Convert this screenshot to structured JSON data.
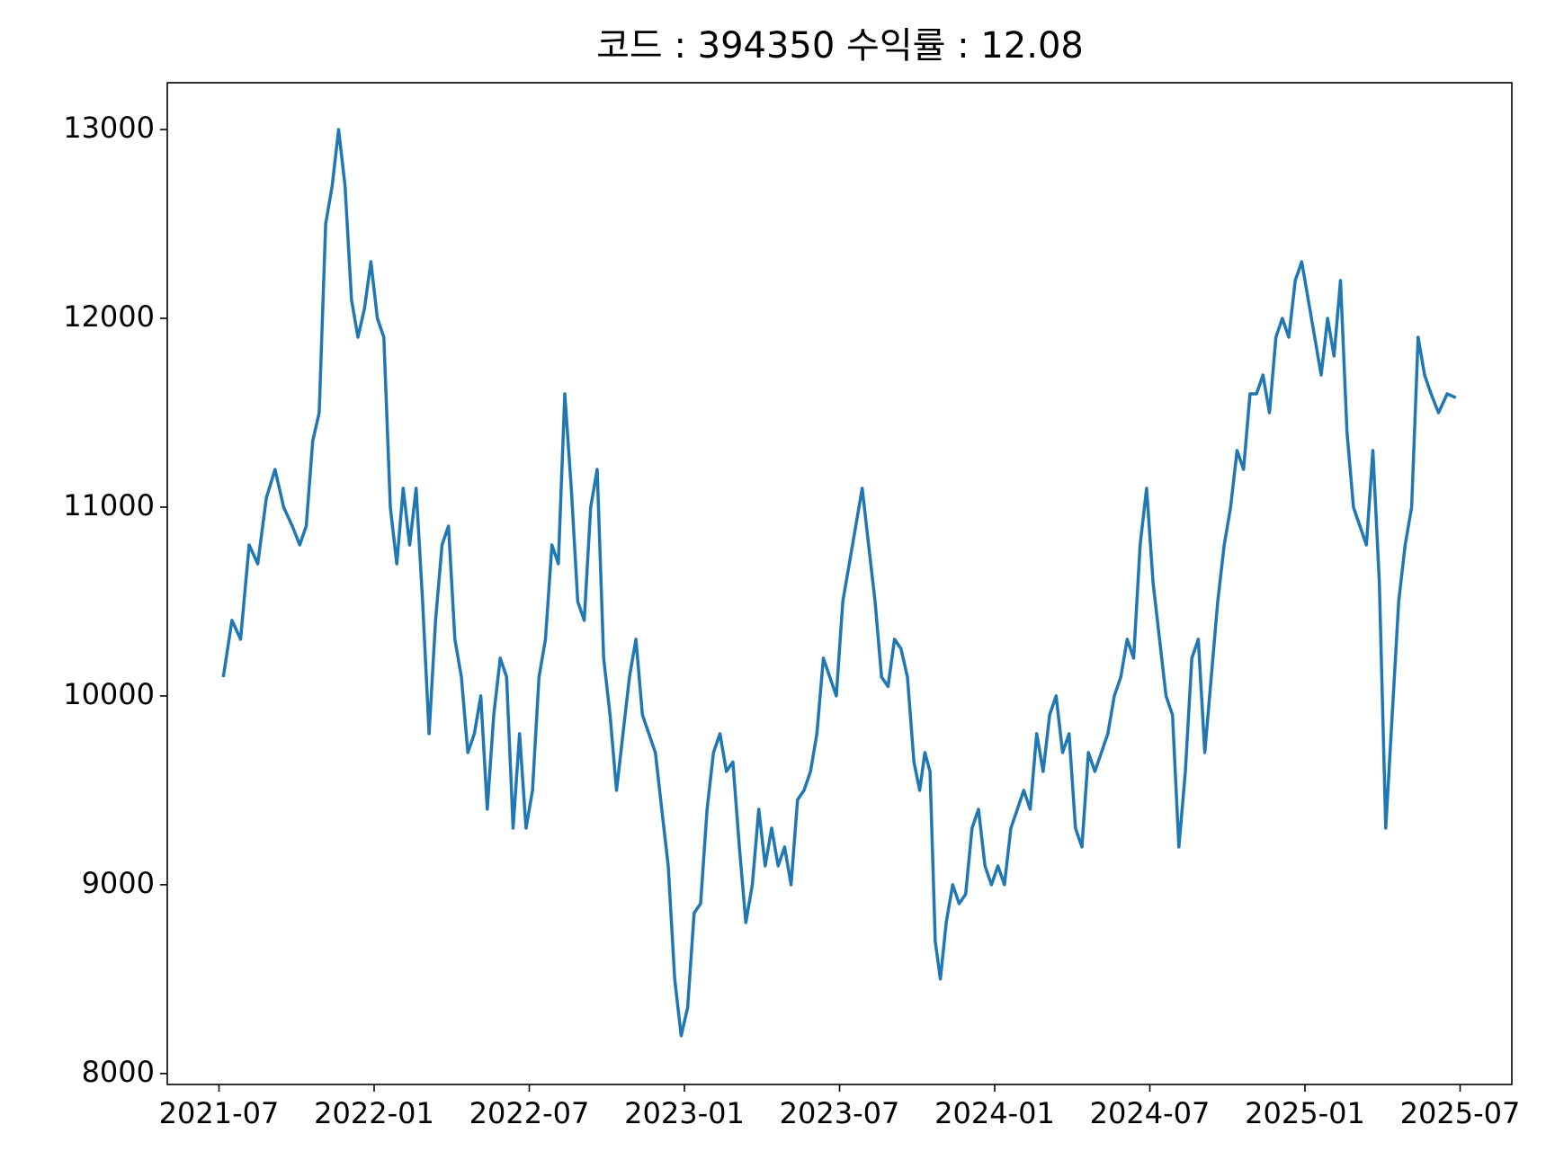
{
  "chart_data": {
    "type": "line",
    "title": "코드 : 394350 수익률 : 12.08",
    "x": [
      "2021-07",
      "2021-07",
      "2021-07",
      "2021-08",
      "2021-08",
      "2021-08",
      "2021-09",
      "2021-09",
      "2021-09",
      "2021-10",
      "2021-10",
      "2021-10",
      "2021-10",
      "2021-11",
      "2021-11",
      "2021-11",
      "2021-11",
      "2021-12",
      "2021-12",
      "2021-12",
      "2021-12",
      "2022-01",
      "2022-01",
      "2022-01",
      "2022-01",
      "2022-02",
      "2022-02",
      "2022-02",
      "2022-02",
      "2022-03",
      "2022-03",
      "2022-03",
      "2022-03",
      "2022-04",
      "2022-04",
      "2022-04",
      "2022-04",
      "2022-05",
      "2022-05",
      "2022-05",
      "2022-05",
      "2022-06",
      "2022-06",
      "2022-06",
      "2022-06",
      "2022-07",
      "2022-07",
      "2022-07",
      "2022-07",
      "2022-08",
      "2022-08",
      "2022-08",
      "2022-08",
      "2022-09",
      "2022-09",
      "2022-09",
      "2022-09",
      "2022-10",
      "2022-10",
      "2022-10",
      "2022-10",
      "2022-11",
      "2022-11",
      "2022-11",
      "2022-11",
      "2022-12",
      "2022-12",
      "2022-12",
      "2022-12",
      "2023-01",
      "2023-01",
      "2023-01",
      "2023-01",
      "2023-02",
      "2023-02",
      "2023-02",
      "2023-02",
      "2023-03",
      "2023-03",
      "2023-03",
      "2023-03",
      "2023-04",
      "2023-04",
      "2023-04",
      "2023-04",
      "2023-05",
      "2023-05",
      "2023-05",
      "2023-05",
      "2023-06",
      "2023-06",
      "2023-06",
      "2023-06",
      "2023-07",
      "2023-07",
      "2023-07",
      "2023-07",
      "2023-08",
      "2023-08",
      "2023-08",
      "2023-08",
      "2023-09",
      "2023-09",
      "2023-09",
      "2023-09",
      "2023-10",
      "2023-10",
      "2023-10",
      "2023-10",
      "2023-10",
      "2023-11",
      "2023-11",
      "2023-11",
      "2023-11",
      "2023-12",
      "2023-12",
      "2023-12",
      "2023-12",
      "2024-01",
      "2024-01",
      "2024-01",
      "2024-01",
      "2024-02",
      "2024-02",
      "2024-02",
      "2024-02",
      "2024-03",
      "2024-03",
      "2024-03",
      "2024-03",
      "2024-04",
      "2024-04",
      "2024-04",
      "2024-04",
      "2024-05",
      "2024-05",
      "2024-05",
      "2024-05",
      "2024-06",
      "2024-06",
      "2024-06",
      "2024-06",
      "2024-07",
      "2024-07",
      "2024-07",
      "2024-07",
      "2024-08",
      "2024-08",
      "2024-08",
      "2024-08",
      "2024-09",
      "2024-09",
      "2024-09",
      "2024-09",
      "2024-10",
      "2024-10",
      "2024-10",
      "2024-10",
      "2024-11",
      "2024-11",
      "2024-11",
      "2024-11",
      "2024-12",
      "2024-12",
      "2024-12",
      "2024-12",
      "2025-01",
      "2025-01",
      "2025-01",
      "2025-01",
      "2025-02",
      "2025-02",
      "2025-02",
      "2025-02",
      "2025-03",
      "2025-03",
      "2025-03",
      "2025-03",
      "2025-04",
      "2025-04",
      "2025-04",
      "2025-04",
      "2025-05",
      "2025-05",
      "2025-05",
      "2025-05",
      "2025-06",
      "2025-06",
      "2025-06"
    ],
    "series": [
      {
        "name": "394350",
        "color": "#1f77b4",
        "values": [
          10100,
          10400,
          10300,
          10800,
          10700,
          11050,
          11200,
          11000,
          10900,
          10800,
          10900,
          11350,
          11500,
          12500,
          12700,
          13000,
          12700,
          12100,
          11900,
          12050,
          12300,
          12000,
          11900,
          11000,
          10700,
          11100,
          10800,
          11100,
          10500,
          9800,
          10400,
          10800,
          10900,
          10300,
          10100,
          9700,
          9800,
          10000,
          9400,
          9900,
          10200,
          10100,
          9300,
          9800,
          9300,
          9500,
          10100,
          10300,
          10800,
          10700,
          11600,
          11100,
          10500,
          10400,
          11000,
          11200,
          10200,
          9900,
          9500,
          9800,
          10100,
          10300,
          9900,
          9800,
          9700,
          9400,
          9100,
          8500,
          8200,
          8350,
          8850,
          8900,
          9400,
          9700,
          9800,
          9600,
          9650,
          9200,
          8800,
          9000,
          9400,
          9100,
          9300,
          9100,
          9200,
          9000,
          9450,
          9500,
          9600,
          9800,
          10200,
          10100,
          10000,
          10500,
          10700,
          10900,
          11100,
          10800,
          10500,
          10100,
          10050,
          10300,
          10250,
          10100,
          9650,
          9500,
          9700,
          9600,
          8700,
          8500,
          8800,
          9000,
          8900,
          8950,
          9300,
          9400,
          9100,
          9000,
          9100,
          9000,
          9300,
          9400,
          9500,
          9400,
          9800,
          9600,
          9900,
          10000,
          9700,
          9800,
          9300,
          9200,
          9700,
          9600,
          9700,
          9800,
          10000,
          10100,
          10300,
          10200,
          10800,
          11100,
          10600,
          10300,
          10000,
          9900,
          9200,
          9600,
          10200,
          10300,
          9700,
          10100,
          10500,
          10800,
          11000,
          11300,
          11200,
          11600,
          11600,
          11700,
          11500,
          11900,
          12000,
          11900,
          12200,
          12300,
          12100,
          11900,
          11700,
          12000,
          11800,
          12200,
          11400,
          11000,
          10900,
          10800,
          11300,
          10600,
          9300,
          9900,
          10500,
          10800,
          11000,
          11900,
          11700,
          11600,
          11500,
          11600,
          11580
        ]
      }
    ],
    "xlim": [
      "2021-05",
      "2025-09"
    ],
    "xticks": [
      "2021-07",
      "2022-01",
      "2022-07",
      "2023-01",
      "2023-07",
      "2024-01",
      "2024-07",
      "2025-01",
      "2025-07"
    ],
    "ylim": [
      7942,
      13248
    ],
    "yticks": [
      8000,
      9000,
      10000,
      11000,
      12000,
      13000
    ]
  }
}
